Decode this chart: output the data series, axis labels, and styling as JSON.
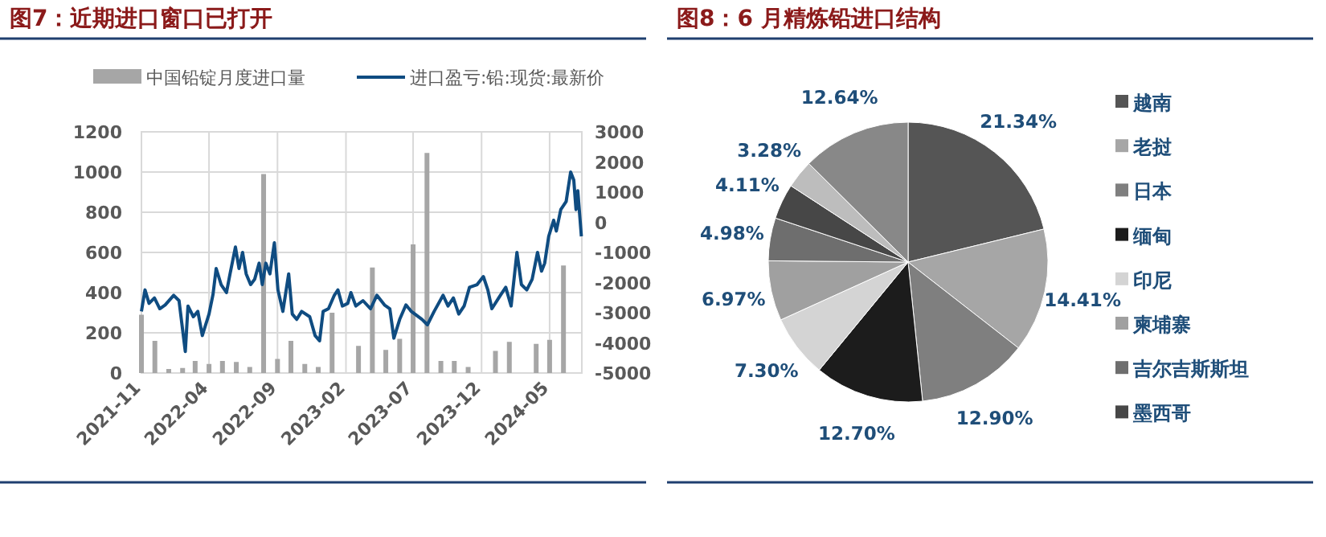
{
  "chart_data": [
    {
      "type": "bar",
      "title": "图7：近期进口窗口已打开",
      "legend": "top",
      "grid": true,
      "xlim": [
        "2021-11-01",
        "2024-07-12"
      ],
      "xticks": [
        "2021-11",
        "2022-04",
        "2022-09",
        "2023-02",
        "2023-07",
        "2023-12",
        "2024-05"
      ],
      "ylim": [
        0,
        1200
      ],
      "yticks": [
        0,
        200,
        400,
        600,
        800,
        1000,
        1200
      ],
      "y2lim": [
        -5000,
        3000
      ],
      "y2ticks": [
        -5000,
        -4000,
        -3000,
        -2000,
        -1000,
        0,
        1000,
        2000,
        3000
      ],
      "series": [
        {
          "name": "中国铅锭月度进口量",
          "type": "bar",
          "color": "#a6a6a6",
          "x": [
            "2021-11",
            "2021-12",
            "2022-01",
            "2022-02",
            "2022-03",
            "2022-04",
            "2022-05",
            "2022-06",
            "2022-07",
            "2022-08",
            "2022-09",
            "2022-10",
            "2022-11",
            "2022-12",
            "2023-01",
            "2023-02",
            "2023-03",
            "2023-04",
            "2023-05",
            "2023-06",
            "2023-07",
            "2023-08",
            "2023-09",
            "2023-10",
            "2023-11",
            "2023-12",
            "2024-01",
            "2024-02",
            "2024-03",
            "2024-04",
            "2024-05",
            "2024-06"
          ],
          "values": [
            290,
            160,
            20,
            25,
            60,
            45,
            60,
            55,
            30,
            990,
            70,
            160,
            45,
            30,
            300,
            0,
            135,
            525,
            115,
            170,
            640,
            1095,
            60,
            60,
            30,
            0,
            110,
            155,
            0,
            145,
            165,
            535
          ]
        },
        {
          "name": "进口盈亏:铅:现货:最新价",
          "type": "line",
          "axis": "y2",
          "color": "#0f4c81",
          "x": [
            "2021-11-01",
            "2021-11-09",
            "2021-11-18",
            "2021-11-30",
            "2021-12-12",
            "2021-12-24",
            "2022-01-12",
            "2022-01-24",
            "2022-02-07",
            "2022-02-13",
            "2022-02-25",
            "2022-03-07",
            "2022-03-17",
            "2022-04-01",
            "2022-04-10",
            "2022-04-17",
            "2022-04-28",
            "2022-05-10",
            "2022-05-18",
            "2022-05-30",
            "2022-06-07",
            "2022-06-15",
            "2022-06-23",
            "2022-07-03",
            "2022-07-12",
            "2022-07-22",
            "2022-07-29",
            "2022-08-06",
            "2022-08-15",
            "2022-08-25",
            "2022-09-02",
            "2022-09-13",
            "2022-09-26",
            "2022-10-04",
            "2022-10-14",
            "2022-10-25",
            "2022-11-12",
            "2022-11-24",
            "2022-12-04",
            "2022-12-12",
            "2022-12-24",
            "2023-01-06",
            "2023-01-14",
            "2023-01-24",
            "2023-02-05",
            "2023-02-12",
            "2023-02-23",
            "2023-03-11",
            "2023-03-28",
            "2023-04-11",
            "2023-04-28",
            "2023-05-10",
            "2023-05-19",
            "2023-06-01",
            "2023-06-15",
            "2023-06-27",
            "2023-07-21",
            "2023-08-02",
            "2023-08-17",
            "2023-09-06",
            "2023-09-17",
            "2023-09-29",
            "2023-10-11",
            "2023-10-23",
            "2023-11-04",
            "2023-11-21",
            "2023-12-05",
            "2023-12-15",
            "2023-12-24",
            "2024-01-12",
            "2024-01-24",
            "2024-02-05",
            "2024-02-18",
            "2024-02-28",
            "2024-03-11",
            "2024-03-23",
            "2024-04-04",
            "2024-04-13",
            "2024-04-20",
            "2024-04-29",
            "2024-05-10",
            "2024-05-16",
            "2024-05-26",
            "2024-06-07",
            "2024-06-17",
            "2024-06-24",
            "2024-06-29",
            "2024-07-03",
            "2024-07-11"
          ],
          "values": [
            -2956,
            -2244,
            -2689,
            -2511,
            -2867,
            -2742,
            -2422,
            -2600,
            -4289,
            -2778,
            -3133,
            -2956,
            -3756,
            -3044,
            -2387,
            -1533,
            -2067,
            -2333,
            -1711,
            -822,
            -1533,
            -1000,
            -1711,
            -2067,
            -1889,
            -1356,
            -2067,
            -1356,
            -1711,
            -680,
            -2244,
            -2956,
            -1711,
            -3044,
            -3222,
            -2956,
            -3133,
            -3756,
            -3933,
            -2956,
            -2867,
            -2422,
            -2244,
            -2778,
            -2689,
            -2333,
            -2778,
            -2600,
            -2867,
            -2422,
            -2742,
            -2867,
            -3844,
            -3222,
            -2742,
            -2956,
            -3222,
            -3400,
            -2956,
            -2422,
            -2778,
            -2511,
            -3044,
            -2778,
            -2156,
            -2067,
            -1800,
            -2244,
            -2867,
            -2422,
            -2156,
            -2778,
            -1000,
            -2067,
            -2244,
            -1889,
            -1000,
            -1622,
            -1356,
            -467,
            67,
            -289,
            422,
            689,
            1667,
            1400,
            422,
            1044,
            -467
          ]
        }
      ]
    },
    {
      "type": "pie",
      "title": "图8：6 月精炼铅进口结构",
      "legend": "right",
      "categories": [
        "越南",
        "老挝",
        "日本",
        "缅甸",
        "印尼",
        "柬埔寨",
        "吉尔吉斯斯坦",
        "墨西哥",
        null,
        null
      ],
      "values": [
        21.34,
        14.41,
        12.9,
        12.7,
        7.3,
        6.97,
        4.98,
        4.11,
        3.28,
        12.64
      ],
      "value_labels": [
        "21.34%",
        "14.41%",
        "12.90%",
        "12.70%",
        "7.30%",
        "6.97%",
        "4.98%",
        "4.11%",
        "3.28%",
        "12.64%"
      ],
      "colors": [
        "#555555",
        "#a6a6a6",
        "#7f7f7f",
        "#1c1c1c",
        "#d4d4d4",
        "#a0a0a0",
        "#6e6e6e",
        "#474747",
        "#bdbdbd",
        "#888888"
      ]
    }
  ]
}
